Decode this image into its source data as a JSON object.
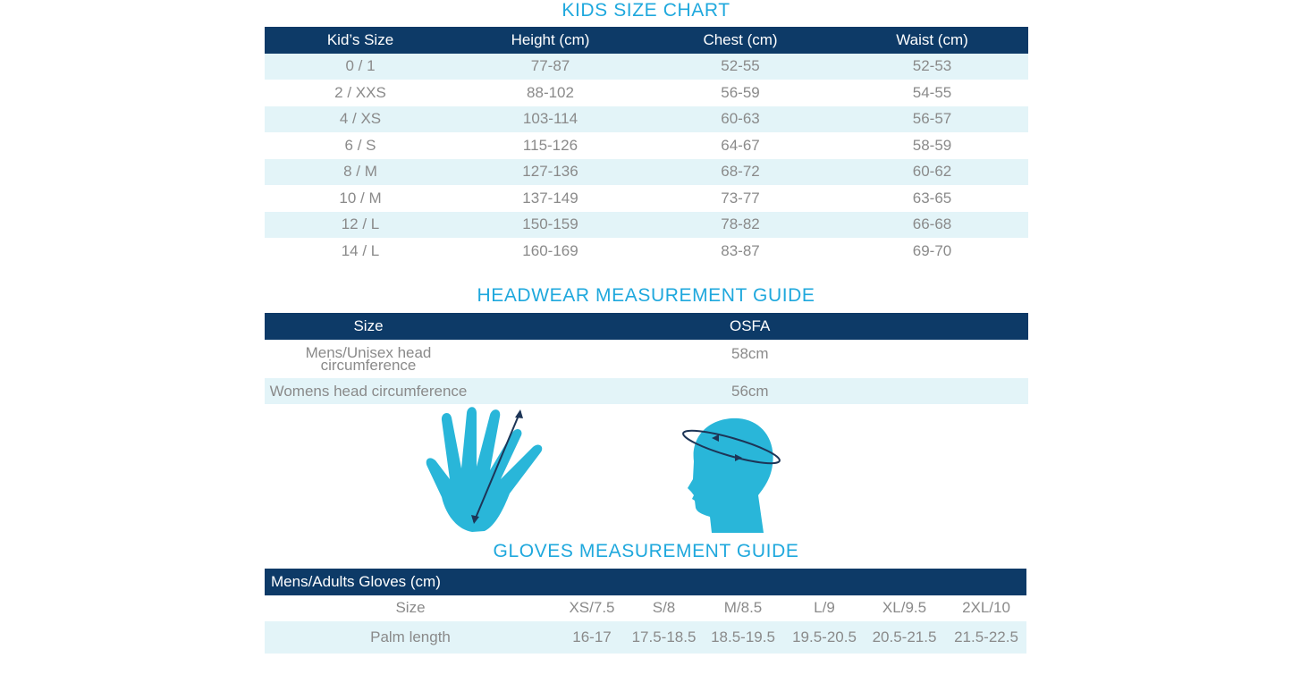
{
  "kids": {
    "title": "KIDS SIZE CHART",
    "headers": [
      "Kid’s Size",
      "Height (cm)",
      "Chest (cm)",
      "Waist (cm)"
    ],
    "rows": [
      [
        "0 / 1",
        "77-87",
        "52-55",
        "52-53"
      ],
      [
        "2 / XXS",
        "88-102",
        "56-59",
        "54-55"
      ],
      [
        "4 / XS",
        "103-114",
        "60-63",
        "56-57"
      ],
      [
        "6 / S",
        "115-126",
        "64-67",
        "58-59"
      ],
      [
        "8 / M",
        "127-136",
        "68-72",
        "60-62"
      ],
      [
        "10 / M",
        "137-149",
        "73-77",
        "63-65"
      ],
      [
        "12 / L",
        "150-159",
        "78-82",
        "66-68"
      ],
      [
        "14 / L",
        "160-169",
        "83-87",
        "69-70"
      ]
    ]
  },
  "headwear": {
    "title": "HEADWEAR MEASUREMENT GUIDE",
    "headers": [
      "Size",
      "OSFA"
    ],
    "rows": [
      {
        "label_line1": "Mens/Unisex head",
        "label_line2": "circumference",
        "value": "58cm"
      },
      {
        "label": "Womens head circumference",
        "value": "56cm"
      }
    ]
  },
  "illustrations": {
    "hand": "hand-measurement-icon",
    "head": "head-measurement-icon",
    "color": "#29b6d9",
    "arrow_color": "#1d3557"
  },
  "gloves": {
    "title": "GLOVES MEASUREMENT GUIDE",
    "header": "Mens/Adults Gloves (cm)",
    "size_row": [
      "Size",
      "XS/7.5",
      "S/8",
      "M/8.5",
      "L/9",
      "XL/9.5",
      "2XL/10"
    ],
    "palm_row": [
      "Palm length",
      "16-17",
      "17.5-18.5",
      "18.5-19.5",
      "19.5-20.5",
      "20.5-21.5",
      "21.5-22.5"
    ]
  },
  "colors": {
    "header_bg": "#0d3a67",
    "alt_row_bg": "#e3f4f8",
    "title_color": "#1fa8dd"
  }
}
